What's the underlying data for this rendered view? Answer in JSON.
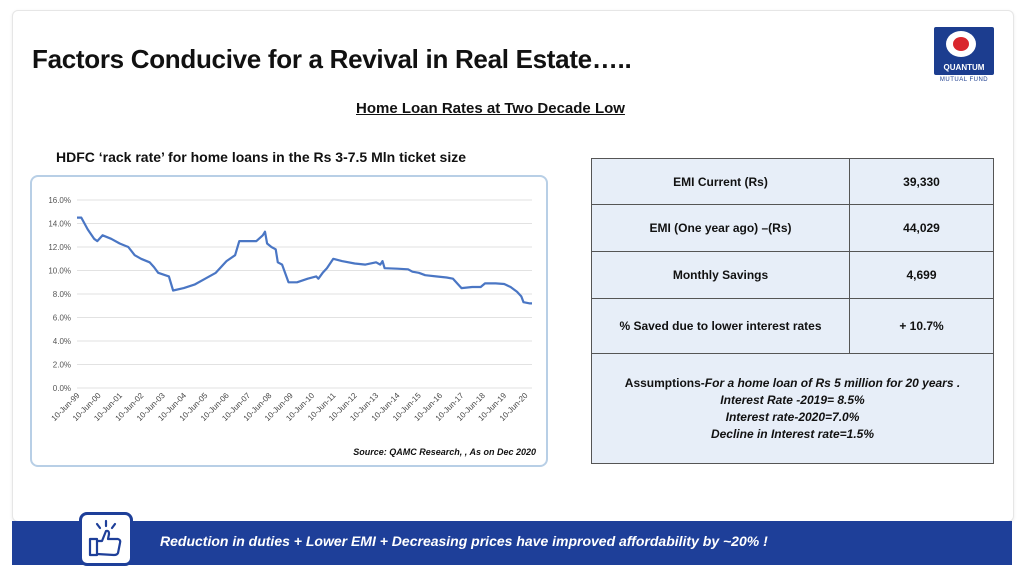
{
  "header": {
    "title": "Factors Conducive for a Revival in Real Estate…..",
    "subtitle": "Home Loan Rates at Two Decade Low"
  },
  "logo": {
    "name": "QUANTUM",
    "sub": "MUTUAL FUND",
    "icon": "quantum-logo"
  },
  "chart_caption": "HDFC ‘rack rate’ for home loans in the Rs 3-7.5 Mln ticket size",
  "chart_data": {
    "type": "line",
    "title": "",
    "xlabel": "",
    "ylabel": "",
    "ylim": [
      0,
      16
    ],
    "grid": true,
    "x_ticks": [
      "10-Jun-99",
      "10-Jun-00",
      "10-Jun-01",
      "10-Jun-02",
      "10-Jun-03",
      "10-Jun-04",
      "10-Jun-05",
      "10-Jun-06",
      "10-Jun-07",
      "10-Jun-08",
      "10-Jun-09",
      "10-Jun-10",
      "10-Jun-11",
      "10-Jun-12",
      "10-Jun-13",
      "10-Jun-14",
      "10-Jun-15",
      "10-Jun-16",
      "10-Jun-17",
      "10-Jun-18",
      "10-Jun-19",
      "10-Jun-20"
    ],
    "y_ticks": [
      "0.0%",
      "2.0%",
      "4.0%",
      "6.0%",
      "8.0%",
      "10.0%",
      "12.0%",
      "14.0%",
      "16.0%"
    ],
    "series": [
      {
        "color": "#4a76c4",
        "points": [
          [
            1999.0,
            14.5
          ],
          [
            1999.2,
            14.5
          ],
          [
            1999.5,
            13.5
          ],
          [
            1999.8,
            12.7
          ],
          [
            1999.95,
            12.5
          ],
          [
            2000.2,
            13.0
          ],
          [
            2000.6,
            12.7
          ],
          [
            2001.0,
            12.3
          ],
          [
            2001.4,
            12.0
          ],
          [
            2001.7,
            11.3
          ],
          [
            2002.0,
            11.0
          ],
          [
            2002.4,
            10.7
          ],
          [
            2002.6,
            10.3
          ],
          [
            2002.8,
            9.8
          ],
          [
            2003.3,
            9.5
          ],
          [
            2003.5,
            8.3
          ],
          [
            2004.0,
            8.5
          ],
          [
            2004.5,
            8.8
          ],
          [
            2005.0,
            9.3
          ],
          [
            2005.5,
            9.8
          ],
          [
            2006.0,
            10.8
          ],
          [
            2006.4,
            11.3
          ],
          [
            2006.6,
            12.5
          ],
          [
            2007.0,
            12.5
          ],
          [
            2007.4,
            12.5
          ],
          [
            2007.7,
            13.0
          ],
          [
            2007.8,
            13.3
          ],
          [
            2007.9,
            12.3
          ],
          [
            2008.1,
            12.0
          ],
          [
            2008.3,
            11.8
          ],
          [
            2008.4,
            10.7
          ],
          [
            2008.6,
            10.5
          ],
          [
            2008.9,
            9.0
          ],
          [
            2009.3,
            9.0
          ],
          [
            2009.8,
            9.3
          ],
          [
            2010.2,
            9.5
          ],
          [
            2010.3,
            9.3
          ],
          [
            2010.5,
            9.8
          ],
          [
            2010.7,
            10.2
          ],
          [
            2011.0,
            11.0
          ],
          [
            2011.4,
            10.8
          ],
          [
            2012.0,
            10.6
          ],
          [
            2012.5,
            10.5
          ],
          [
            2013.0,
            10.7
          ],
          [
            2013.2,
            10.5
          ],
          [
            2013.3,
            10.8
          ],
          [
            2013.4,
            10.2
          ],
          [
            2014.0,
            10.15
          ],
          [
            2014.5,
            10.1
          ],
          [
            2014.7,
            9.9
          ],
          [
            2015.0,
            9.8
          ],
          [
            2015.3,
            9.6
          ],
          [
            2015.8,
            9.5
          ],
          [
            2016.3,
            9.4
          ],
          [
            2016.6,
            9.3
          ],
          [
            2017.0,
            8.5
          ],
          [
            2017.5,
            8.6
          ],
          [
            2017.9,
            8.6
          ],
          [
            2018.1,
            8.9
          ],
          [
            2018.6,
            8.9
          ],
          [
            2019.0,
            8.85
          ],
          [
            2019.3,
            8.6
          ],
          [
            2019.6,
            8.2
          ],
          [
            2019.8,
            7.8
          ],
          [
            2019.9,
            7.3
          ],
          [
            2020.2,
            7.2
          ],
          [
            2020.3,
            7.2
          ]
        ]
      }
    ]
  },
  "source": "Source: QAMC Research, , As on Dec 2020",
  "emi_table": {
    "rows": [
      {
        "label": "EMI Current (Rs)",
        "value": "39,330"
      },
      {
        "label": "EMI (One year ago) –(Rs)",
        "value": "44,029"
      },
      {
        "label": "Monthly Savings",
        "value": "4,699"
      },
      {
        "label": "% Saved due to lower interest rates",
        "value": "+ 10.7%"
      }
    ],
    "assumptions_label": "Assumptions-",
    "assumptions_lines": [
      "For a home loan of Rs 5 million for 20 years .",
      "Interest Rate -2019= 8.5%",
      "Interest rate-2020=7.0%",
      "Decline in Interest rate=1.5%"
    ]
  },
  "footer": {
    "text": "Reduction in duties + Lower EMI + Decreasing prices have improved affordability by ~20% !",
    "icon": "thumbs-up-icon"
  }
}
